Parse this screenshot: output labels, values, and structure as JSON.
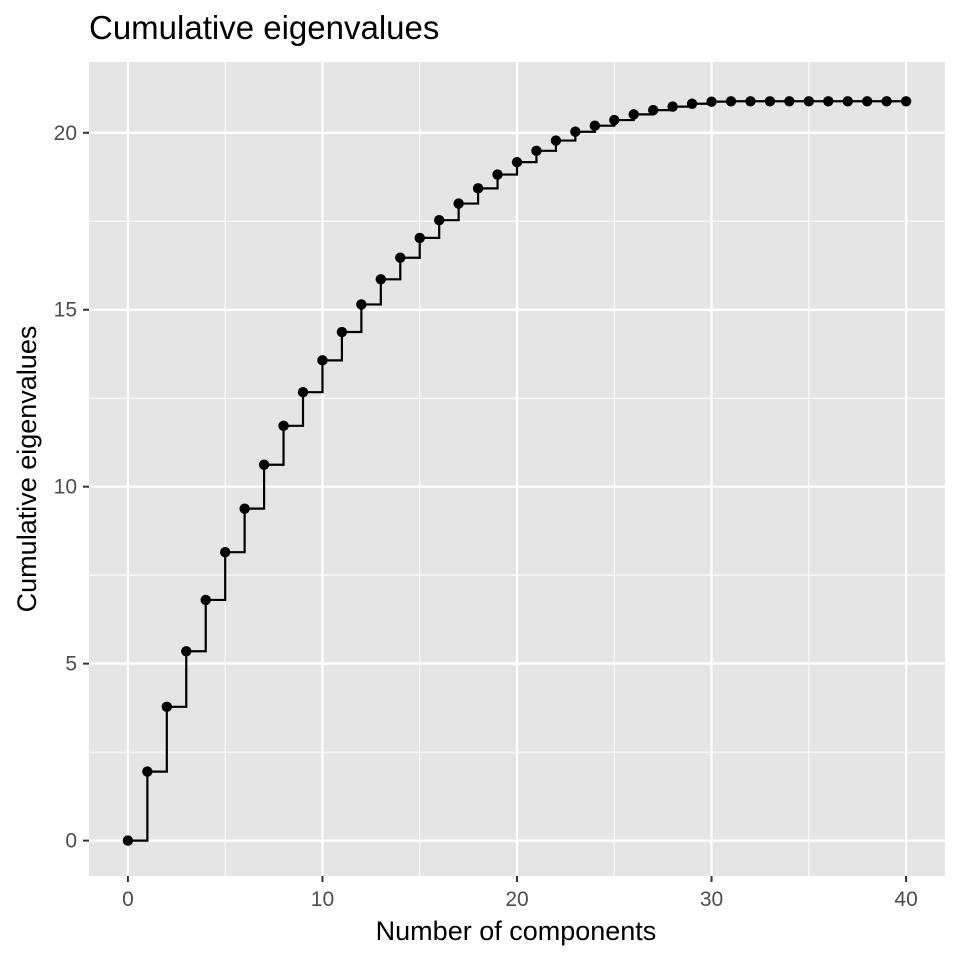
{
  "chart_data": {
    "type": "line",
    "title": "Cumulative eigenvalues",
    "xlabel": "Number of components",
    "ylabel": "Cumulative eigenvalues",
    "xlim": [
      -2,
      42
    ],
    "ylim": [
      -1,
      22
    ],
    "x_ticks": [
      0,
      10,
      20,
      30,
      40
    ],
    "y_ticks": [
      0,
      5,
      10,
      15,
      20
    ],
    "grid": true,
    "step": true,
    "colors": {
      "panel": "#e5e5e5",
      "grid": "#ffffff",
      "series": "#000000",
      "tick_text": "#4d4d4d"
    },
    "x": [
      0,
      1,
      2,
      3,
      4,
      5,
      6,
      7,
      8,
      9,
      10,
      11,
      12,
      13,
      14,
      15,
      16,
      17,
      18,
      19,
      20,
      21,
      22,
      23,
      24,
      25,
      26,
      27,
      28,
      29,
      30,
      31,
      32,
      33,
      34,
      35,
      36,
      37,
      38,
      39,
      40
    ],
    "y": [
      0,
      1.95,
      3.78,
      5.35,
      6.8,
      8.15,
      9.38,
      10.62,
      11.72,
      12.67,
      13.57,
      14.37,
      15.15,
      15.86,
      16.47,
      17.03,
      17.53,
      18.0,
      18.43,
      18.82,
      19.17,
      19.49,
      19.78,
      20.03,
      20.2,
      20.36,
      20.52,
      20.64,
      20.74,
      20.82,
      20.88,
      20.89,
      20.89,
      20.89,
      20.89,
      20.89,
      20.89,
      20.89,
      20.89,
      20.89,
      20.89
    ]
  }
}
